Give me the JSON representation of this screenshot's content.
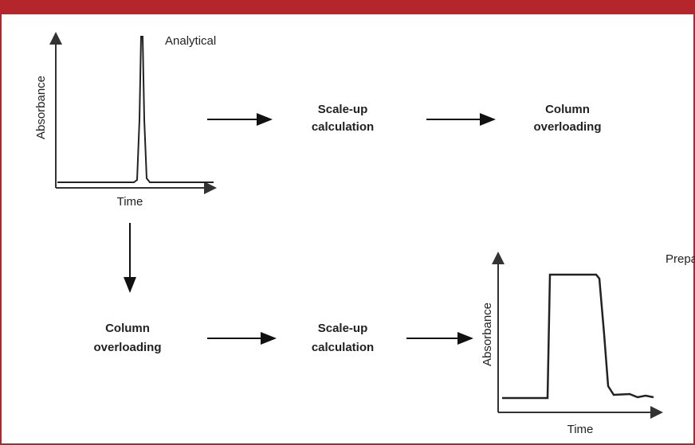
{
  "top_chromatogram": {
    "label": "Analytical",
    "y_axis": "Absorbance",
    "x_axis": "Time"
  },
  "top_flow": [
    [
      "Scale-up",
      "calculation"
    ],
    [
      "Column",
      "overloading"
    ]
  ],
  "bottom_flow": [
    [
      "Column",
      "overloading"
    ],
    [
      "Scale-up",
      "calculation"
    ]
  ],
  "bottom_chromatogram": {
    "label": "Preparative",
    "y_axis": "Absorbance",
    "x_axis": "Time"
  }
}
